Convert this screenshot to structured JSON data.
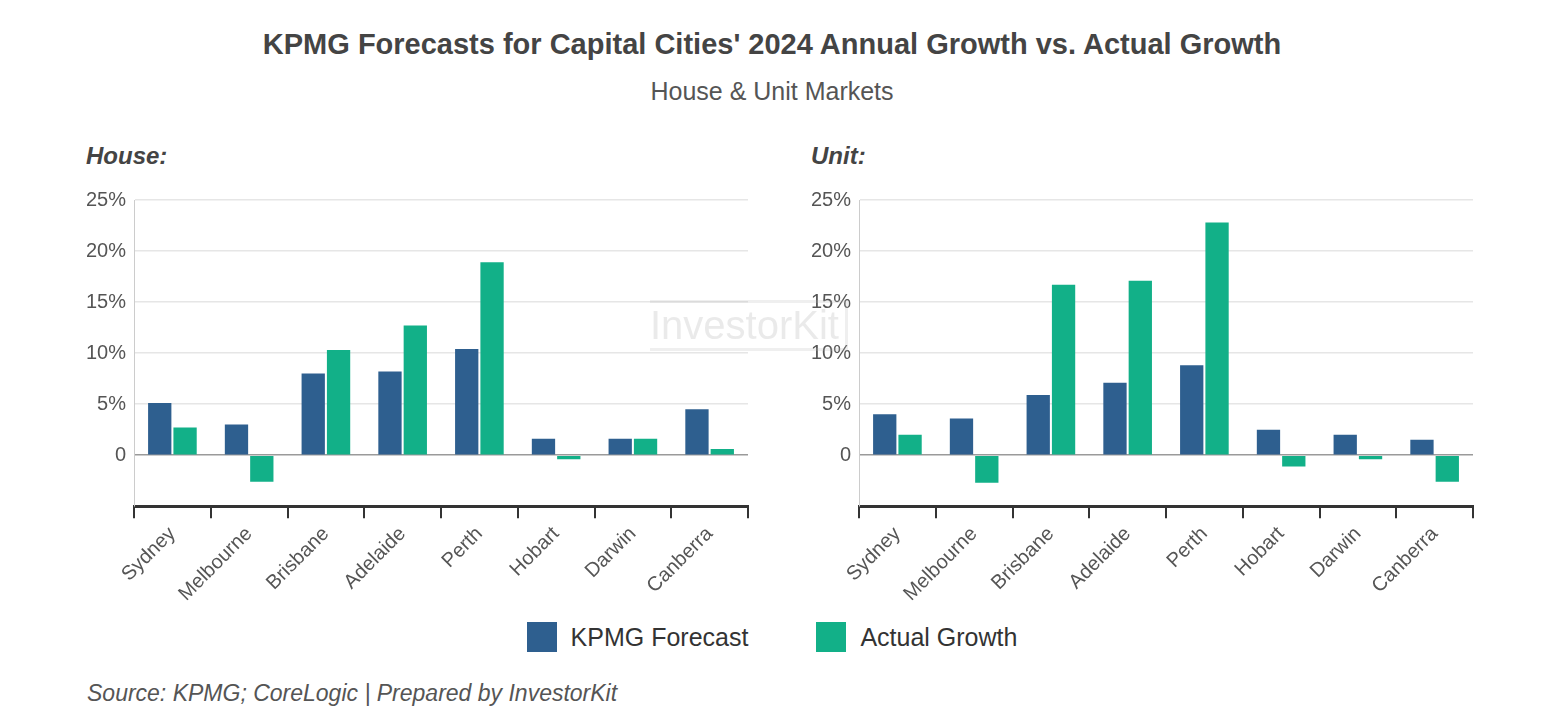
{
  "title": "KPMG Forecasts for Capital Cities' 2024 Annual Growth vs. Actual Growth",
  "subtitle": "House & Unit Markets",
  "source": "Source: KPMG; CoreLogic | Prepared by InvestorKit",
  "watermark": "InvestorKit",
  "chart_data": [
    {
      "type": "bar",
      "title": "House:",
      "categories": [
        "Sydney",
        "Melbourne",
        "Brisbane",
        "Adelaide",
        "Perth",
        "Hobart",
        "Darwin",
        "Canberra"
      ],
      "series": [
        {
          "name": "KPMG Forecast",
          "color": "#2e5f8f",
          "values": [
            5.1,
            3.0,
            8.0,
            8.2,
            10.4,
            1.6,
            1.6,
            4.5
          ]
        },
        {
          "name": "Actual Growth",
          "color": "#12b088",
          "values": [
            2.7,
            -2.6,
            10.3,
            12.7,
            18.9,
            -0.4,
            1.6,
            0.6
          ]
        }
      ],
      "ylim": [
        -5,
        25
      ],
      "yticks": [
        0,
        {
          "value": 5,
          "label": "5%"
        },
        {
          "value": 10,
          "label": "10%"
        },
        {
          "value": 15,
          "label": "15%"
        },
        {
          "value": 20,
          "label": "20%"
        },
        {
          "value": 25,
          "label": "25%"
        }
      ],
      "grid": true,
      "legend": "bottom"
    },
    {
      "type": "bar",
      "title": "Unit:",
      "categories": [
        "Sydney",
        "Melbourne",
        "Brisbane",
        "Adelaide",
        "Perth",
        "Hobart",
        "Darwin",
        "Canberra"
      ],
      "series": [
        {
          "name": "KPMG Forecast",
          "color": "#2e5f8f",
          "values": [
            4.0,
            3.6,
            5.9,
            7.1,
            8.8,
            2.5,
            2.0,
            1.5
          ]
        },
        {
          "name": "Actual Growth",
          "color": "#12b088",
          "values": [
            2.0,
            -2.7,
            16.7,
            17.1,
            22.8,
            -1.1,
            -0.4,
            -2.6
          ]
        }
      ],
      "ylim": [
        -5,
        25
      ],
      "yticks": [
        0,
        {
          "value": 5,
          "label": "5%"
        },
        {
          "value": 10,
          "label": "10%"
        },
        {
          "value": 15,
          "label": "15%"
        },
        {
          "value": 20,
          "label": "20%"
        },
        {
          "value": 25,
          "label": "25%"
        }
      ],
      "grid": true,
      "legend": "bottom"
    }
  ]
}
